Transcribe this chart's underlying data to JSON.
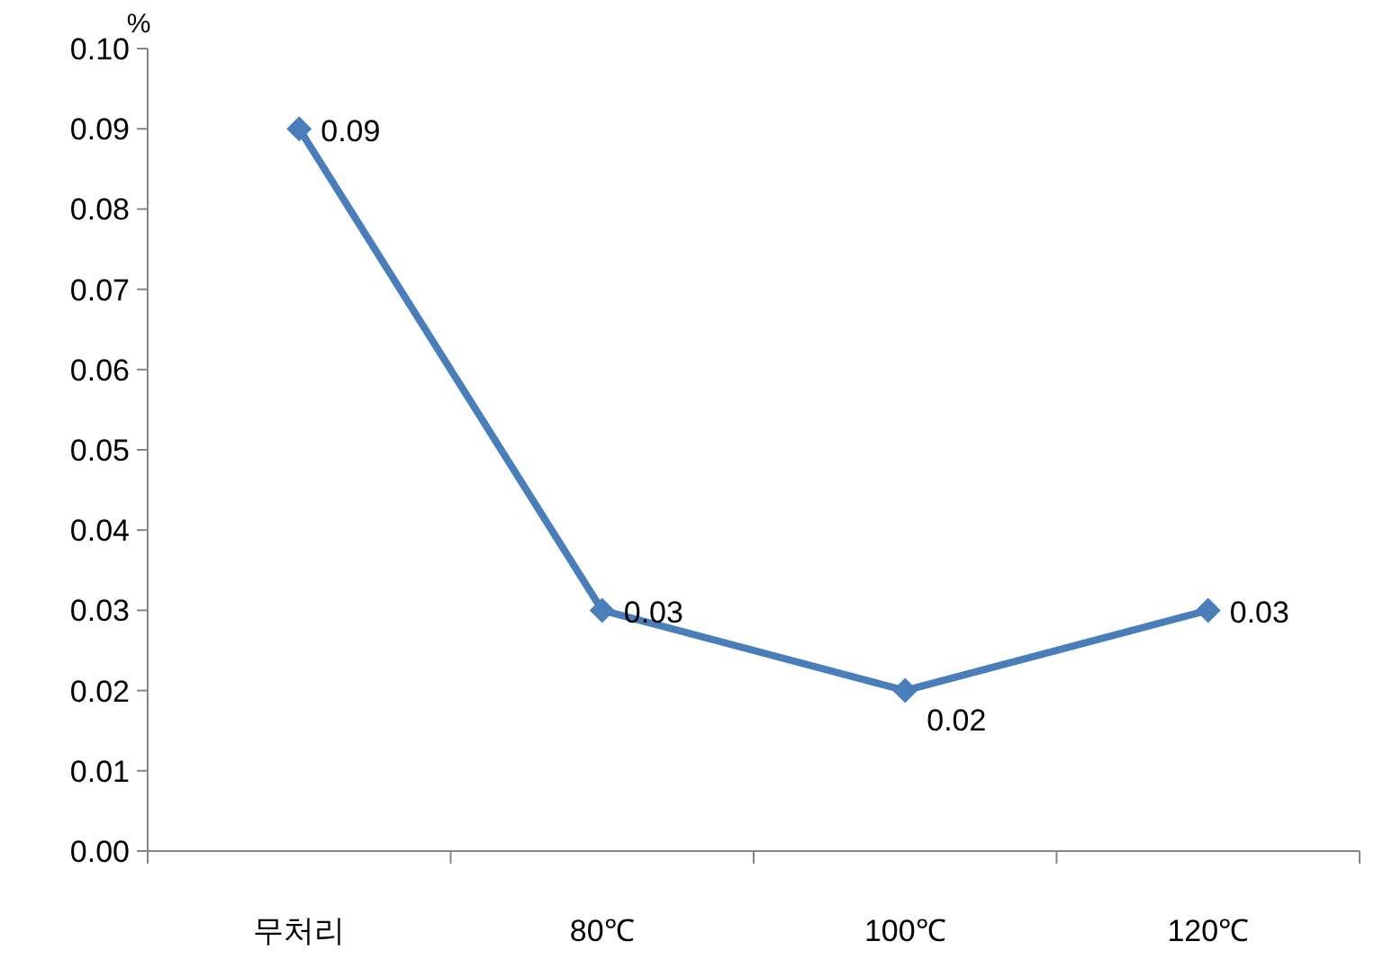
{
  "chart_data": {
    "type": "line",
    "ylabel": "%",
    "categories": [
      "무처리",
      "80℃",
      "100℃",
      "120℃"
    ],
    "series": [
      {
        "color": "#4a7ebb",
        "values": [
          0.09,
          0.03,
          0.02,
          0.03
        ]
      }
    ],
    "ylim": [
      0,
      0.1
    ],
    "yticks": [
      {
        "value": 0,
        "label": "0.00"
      },
      {
        "value": 0.01,
        "label": "0.01"
      },
      {
        "value": 0.02,
        "label": "0.02"
      },
      {
        "value": 0.03,
        "label": "0.03"
      },
      {
        "value": 0.04,
        "label": "0.04"
      },
      {
        "value": 0.05,
        "label": "0.05"
      },
      {
        "value": 0.06,
        "label": "0.06"
      },
      {
        "value": 0.07,
        "label": "0.07"
      },
      {
        "value": 0.08,
        "label": "0.08"
      },
      {
        "value": 0.09,
        "label": "0.09"
      },
      {
        "value": 0.1,
        "label": "0.10"
      }
    ],
    "grid": false,
    "marker": "diamond",
    "line_style": "solid",
    "data_labels": true
  }
}
